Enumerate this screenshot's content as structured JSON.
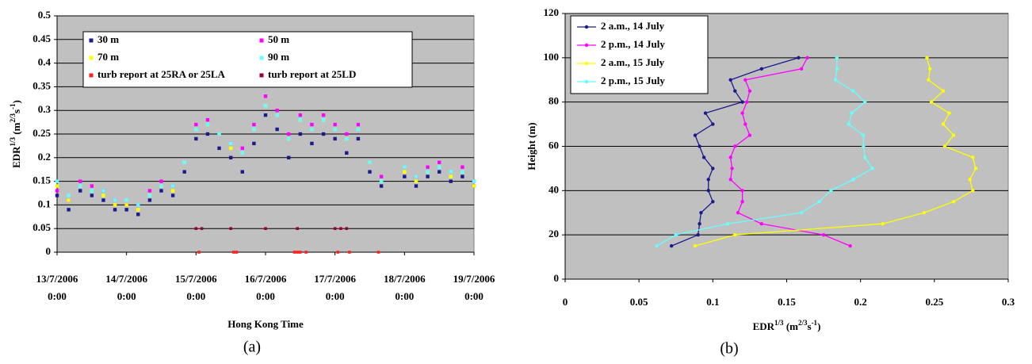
{
  "chart_data": [
    {
      "type": "scatter",
      "ylabel": [
        "EDR",
        "1/3",
        " (m",
        "2/3",
        "s",
        "-1",
        ")"
      ],
      "xlabel": "Hong Kong Time",
      "caption": "(a)",
      "xlim": [
        "13/7/2006 0:00",
        "19/7/2006 0:00"
      ],
      "xticks": [
        "13/7/2006 0:00",
        "14/7/2006 0:00",
        "15/7/2006 0:00",
        "16/7/2006 0:00",
        "17/7/2006 0:00",
        "18/7/2006 0:00",
        "19/7/2006 0:00"
      ],
      "ylim": [
        0,
        0.5
      ],
      "yticks": [
        0,
        0.05,
        0.1,
        0.15,
        0.2,
        0.25,
        0.3,
        0.35,
        0.4,
        0.45,
        0.5
      ],
      "grid": true,
      "x": [
        "13/7/2006 0:00",
        "13/7/2006 4:00",
        "13/7/2006 8:00",
        "13/7/2006 12:00",
        "13/7/2006 16:00",
        "13/7/2006 20:00",
        "14/7/2006 0:00",
        "14/7/2006 4:00",
        "14/7/2006 8:00",
        "14/7/2006 12:00",
        "14/7/2006 16:00",
        "14/7/2006 20:00",
        "15/7/2006 0:00",
        "15/7/2006 4:00",
        "15/7/2006 8:00",
        "15/7/2006 12:00",
        "15/7/2006 16:00",
        "15/7/2006 20:00",
        "16/7/2006 0:00",
        "16/7/2006 4:00",
        "16/7/2006 8:00",
        "16/7/2006 12:00",
        "16/7/2006 16:00",
        "16/7/2006 20:00",
        "17/7/2006 0:00",
        "17/7/2006 4:00",
        "17/7/2006 8:00",
        "17/7/2006 12:00",
        "17/7/2006 16:00",
        "17/7/2006 20:00",
        "18/7/2006 0:00",
        "18/7/2006 4:00",
        "18/7/2006 8:00",
        "18/7/2006 12:00",
        "18/7/2006 16:00",
        "18/7/2006 20:00",
        "19/7/2006 0:00"
      ],
      "series": [
        {
          "name": "30 m",
          "color": "#1a1a8c",
          "values": [
            0.12,
            0.09,
            0.13,
            0.12,
            0.11,
            0.09,
            0.09,
            0.08,
            0.11,
            0.13,
            0.12,
            0.17,
            0.24,
            0.25,
            0.22,
            0.2,
            0.17,
            0.23,
            0.29,
            0.26,
            0.2,
            0.25,
            0.23,
            0.25,
            0.24,
            0.21,
            0.24,
            0.17,
            0.14,
            null,
            0.16,
            0.14,
            0.16,
            0.17,
            0.15,
            0.16,
            0.14
          ]
        },
        {
          "name": "50 m",
          "color": "#ff00ff",
          "values": [
            0.13,
            0.11,
            0.15,
            0.14,
            0.13,
            0.11,
            0.1,
            0.1,
            0.13,
            0.15,
            0.14,
            0.19,
            0.27,
            0.28,
            0.25,
            0.23,
            0.22,
            0.27,
            0.33,
            0.3,
            0.25,
            0.29,
            0.27,
            0.29,
            0.27,
            0.25,
            0.27,
            0.19,
            0.16,
            null,
            0.18,
            0.16,
            0.18,
            0.19,
            0.17,
            0.18,
            0.15
          ]
        },
        {
          "name": "70 m",
          "color": "#ffff00",
          "values": [
            0.14,
            0.11,
            0.14,
            0.13,
            0.12,
            0.1,
            0.1,
            0.09,
            0.12,
            0.14,
            0.13,
            0.19,
            0.26,
            0.27,
            0.25,
            0.22,
            0.21,
            0.26,
            0.31,
            0.29,
            0.24,
            0.28,
            0.26,
            0.28,
            0.26,
            0.24,
            0.26,
            0.19,
            0.15,
            null,
            0.17,
            0.15,
            0.17,
            0.18,
            0.16,
            0.17,
            0.14
          ]
        },
        {
          "name": "90 m",
          "color": "#66ffff",
          "values": [
            0.15,
            0.12,
            0.14,
            0.13,
            0.13,
            0.11,
            0.11,
            0.1,
            0.12,
            0.14,
            0.14,
            0.19,
            0.26,
            0.27,
            0.25,
            0.23,
            0.21,
            0.26,
            0.31,
            0.29,
            0.24,
            0.28,
            0.26,
            0.28,
            0.26,
            0.24,
            0.26,
            0.19,
            0.15,
            null,
            0.18,
            0.16,
            0.17,
            0.18,
            0.17,
            0.17,
            0.15
          ]
        },
        {
          "name": "turb report at 25RA or 25LA",
          "color": "#ff2020",
          "x": [
            "15/7/2006 1:00",
            "15/7/2006 13:00",
            "15/7/2006 14:00",
            "16/7/2006 10:00",
            "16/7/2006 11:00",
            "16/7/2006 12:00",
            "16/7/2006 14:00",
            "17/7/2006 1:00",
            "17/7/2006 5:00",
            "17/7/2006 15:00"
          ],
          "values": [
            0,
            0,
            0,
            0,
            0,
            0,
            0,
            0,
            0,
            0
          ]
        },
        {
          "name": "turb report at 25LD",
          "color": "#990033",
          "x": [
            "15/7/2006 0:00",
            "15/7/2006 2:00",
            "15/7/2006 12:00",
            "16/7/2006 0:00",
            "16/7/2006 11:00",
            "17/7/2006 0:00",
            "17/7/2006 2:00",
            "17/7/2006 4:00"
          ],
          "values": [
            0.05,
            0.05,
            0.05,
            0.05,
            0.05,
            0.05,
            0.05,
            0.05
          ]
        }
      ]
    },
    {
      "type": "line",
      "ylabel": "Height (m)",
      "xlabel": [
        "EDR",
        "1/3",
        " (m",
        "2/3",
        "s",
        "-1",
        ")"
      ],
      "caption": "(b)",
      "xlim": [
        0,
        0.3
      ],
      "xticks": [
        0,
        0.05,
        0.1,
        0.15,
        0.2,
        0.25,
        0.3
      ],
      "ylim": [
        0,
        120
      ],
      "yticks": [
        0,
        20,
        40,
        60,
        80,
        100,
        120
      ],
      "grid": true,
      "y": [
        15,
        20,
        25,
        30,
        35,
        40,
        45,
        50,
        55,
        60,
        65,
        70,
        75,
        80,
        85,
        90,
        95,
        100
      ],
      "series": [
        {
          "name": "2 a.m., 14 July",
          "color": "#1a1a8c",
          "values": [
            0.072,
            0.09,
            0.091,
            0.092,
            0.1,
            0.097,
            0.097,
            0.1,
            0.094,
            0.091,
            0.088,
            0.1,
            0.095,
            0.12,
            0.115,
            0.112,
            0.133,
            0.158
          ]
        },
        {
          "name": "2 p.m., 14 July",
          "color": "#ff00ff",
          "values": [
            0.193,
            0.175,
            0.133,
            0.117,
            0.12,
            0.12,
            0.112,
            0.113,
            0.112,
            0.115,
            0.125,
            0.122,
            0.12,
            0.123,
            0.125,
            0.122,
            0.16,
            0.164
          ]
        },
        {
          "name": "2 a.m., 15 July",
          "color": "#ffff00",
          "values": [
            0.088,
            0.115,
            0.215,
            0.243,
            0.263,
            0.276,
            0.274,
            0.278,
            0.276,
            0.257,
            0.263,
            0.256,
            0.26,
            0.248,
            0.256,
            0.246,
            0.247,
            0.245
          ]
        },
        {
          "name": "2 p.m., 15 July",
          "color": "#66ffff",
          "values": [
            0.062,
            0.075,
            0.11,
            0.16,
            0.172,
            0.18,
            0.195,
            0.208,
            0.203,
            0.202,
            0.202,
            0.192,
            0.194,
            0.203,
            0.195,
            0.183,
            0.184,
            0.184
          ]
        }
      ]
    }
  ]
}
